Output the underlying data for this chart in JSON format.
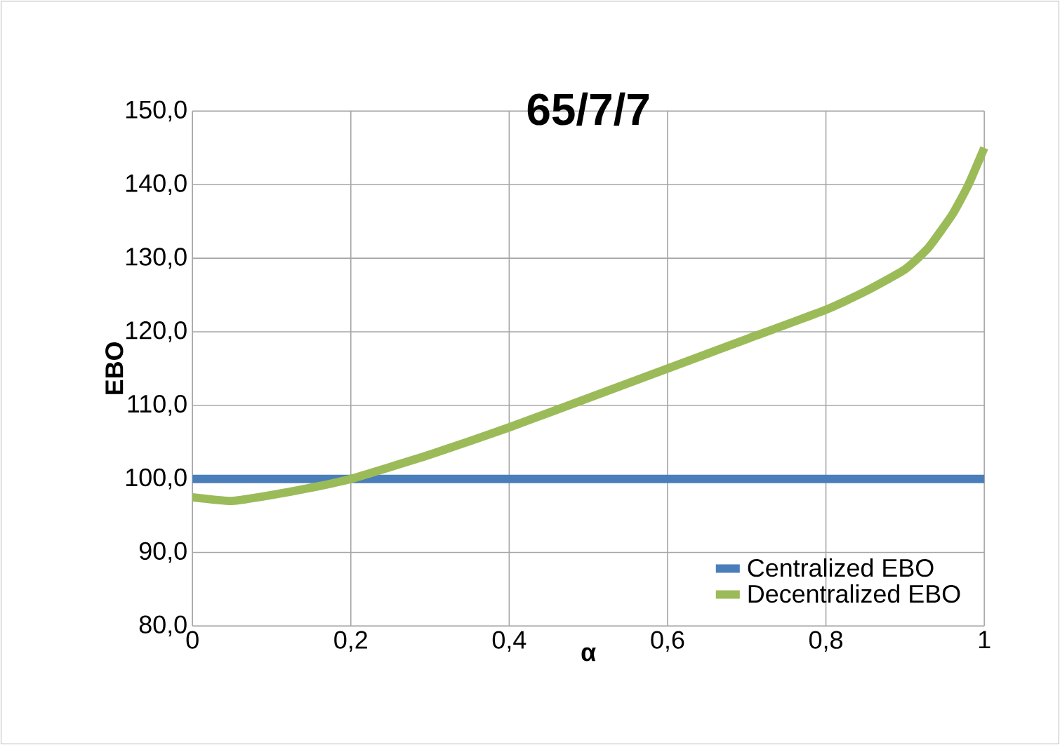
{
  "chart_data": {
    "type": "line",
    "title": "65/7/7",
    "xlabel": "α",
    "ylabel": "EBO",
    "xlim": [
      0,
      1
    ],
    "ylim": [
      80,
      150
    ],
    "xticks": [
      0,
      {
        "value": 0.2,
        "label": "0,2"
      },
      {
        "value": 0.4,
        "label": "0,4"
      },
      {
        "value": 0.6,
        "label": "0,6"
      },
      {
        "value": 0.8,
        "label": "0,8"
      },
      1
    ],
    "yticks": [
      {
        "value": 80,
        "label": "80,0"
      },
      {
        "value": 90,
        "label": "90,0"
      },
      {
        "value": 100,
        "label": "100,0"
      },
      {
        "value": 110,
        "label": "110,0"
      },
      {
        "value": 120,
        "label": "120,0"
      },
      {
        "value": 130,
        "label": "130,0"
      },
      {
        "value": 140,
        "label": "140,0"
      },
      {
        "value": 150,
        "label": "150,0"
      }
    ],
    "grid": true,
    "legend": "bottom right",
    "series": [
      {
        "name": "Centralized EBO",
        "color": "#4a7ebb",
        "x": [
          0,
          1
        ],
        "values": [
          100,
          100
        ]
      },
      {
        "name": "Decentralized EBO",
        "color": "#9bbb59",
        "x": [
          0,
          0.05,
          0.1,
          0.15,
          0.2,
          0.3,
          0.4,
          0.5,
          0.6,
          0.7,
          0.8,
          0.85,
          0.9,
          0.93,
          0.96,
          0.98,
          1
        ],
        "values": [
          97.5,
          97,
          97.8,
          98.8,
          100,
          103.3,
          107,
          111,
          115,
          119,
          123,
          125.5,
          128.5,
          131.5,
          136,
          140,
          145
        ]
      }
    ]
  }
}
